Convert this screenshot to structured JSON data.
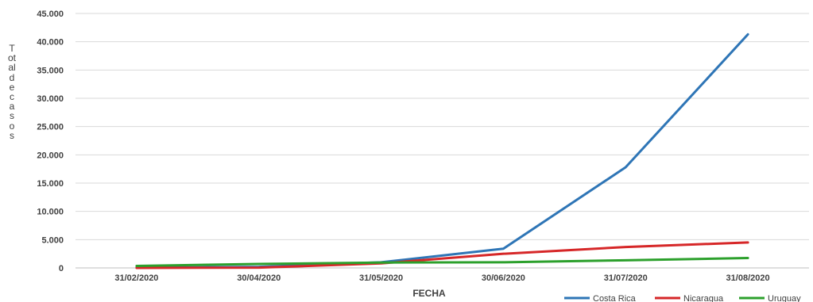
{
  "chart_data": {
    "type": "line",
    "title": "",
    "xlabel": "FECHA",
    "ylabel": "Total de casos",
    "categories": [
      "31/02/2020",
      "30/04/2020",
      "31/05/2020",
      "30/06/2020",
      "31/07/2020",
      "31/08/2020"
    ],
    "ylim": [
      0,
      45000
    ],
    "yticks": [
      0,
      5000,
      10000,
      15000,
      20000,
      25000,
      30000,
      35000,
      40000,
      45000
    ],
    "ytick_labels": [
      "0",
      "5.000",
      "10.000",
      "15.000",
      "20.000",
      "25.000",
      "30.000",
      "35.000",
      "40.000",
      "45.000"
    ],
    "grid": true,
    "legend_position": "bottom-right",
    "series": [
      {
        "name": "Costa Rica",
        "color": "#2E75B6",
        "values": [
          50,
          200,
          1000,
          3400,
          17800,
          41300
        ]
      },
      {
        "name": "Nicaragua",
        "color": "#D62728",
        "values": [
          0,
          50,
          800,
          2500,
          3700,
          4500
        ]
      },
      {
        "name": "Uruguay",
        "color": "#2CA02C",
        "values": [
          350,
          700,
          950,
          1000,
          1350,
          1750
        ]
      }
    ]
  }
}
